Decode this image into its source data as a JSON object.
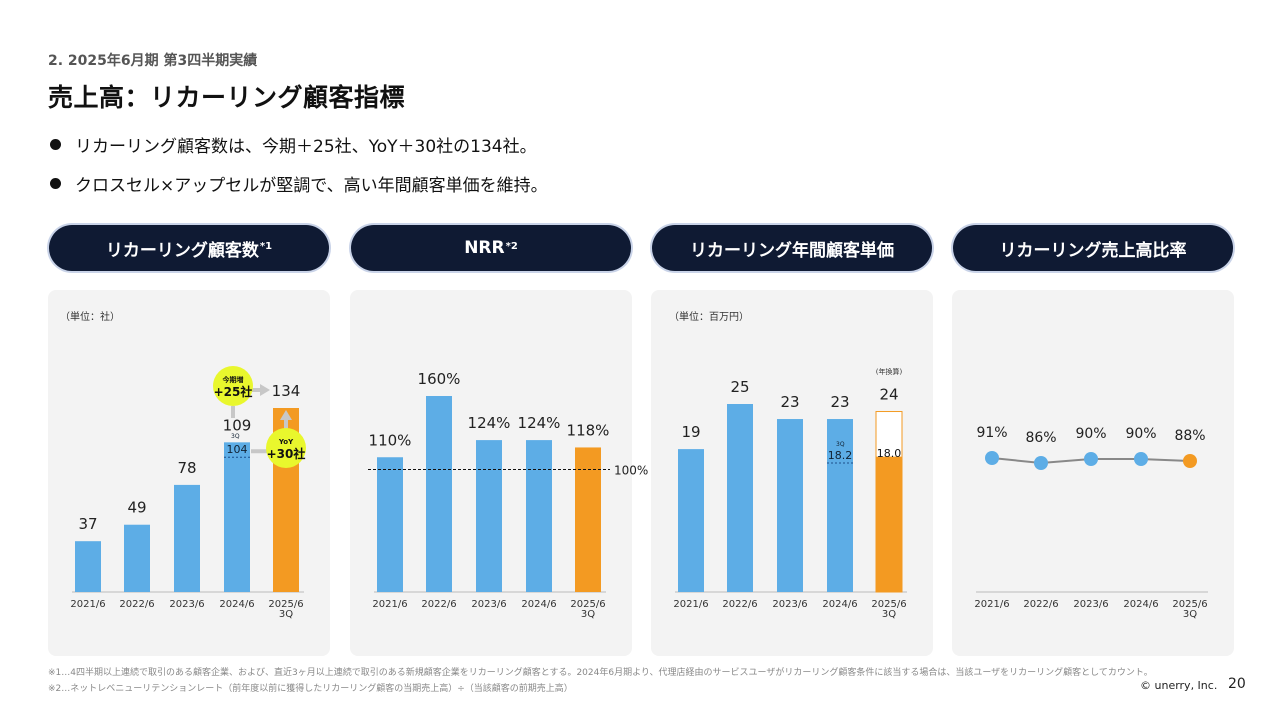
{
  "breadcrumb": "2. 2025年6月期 第3四半期実績",
  "title": "売上高：リカーリング顧客指標",
  "bullets": [
    "リカーリング顧客数は、今期＋25社、YoY＋30社の134社。",
    "クロスセル×アップセルが堅調で、高い年間顧客単価を維持。"
  ],
  "headers": {
    "customers": "リカーリング顧客数",
    "customers_mark": "*1",
    "nrr": "NRR",
    "nrr_mark": "*2",
    "unit_price": "リカーリング年間顧客単価",
    "ratio": "リカーリング売上高比率"
  },
  "colors": {
    "blue": "#5dade6",
    "orange": "#f39a22",
    "navy": "#0f1a33",
    "badge": "#e9f72d",
    "gray": "#c7c7c7"
  },
  "chart_data": [
    {
      "id": "customers",
      "type": "bar",
      "unit": "（単位：社）",
      "categories": [
        "2021/6",
        "2022/6",
        "2023/6",
        "2024/6",
        "2025/6\n3Q"
      ],
      "values": [
        37,
        49,
        78,
        109,
        134
      ],
      "labels": [
        "37",
        "49",
        "78",
        "109",
        "134"
      ],
      "ylim": [
        0,
        134
      ],
      "highlight_index": 4,
      "inner_marker": {
        "index": 3,
        "tag": "3Q",
        "value": 104
      },
      "badges": [
        {
          "small": "今期増",
          "big": "+25社"
        },
        {
          "small": "YoY",
          "big": "+30社"
        }
      ]
    },
    {
      "id": "nrr",
      "type": "bar",
      "categories": [
        "2021/6",
        "2022/6",
        "2023/6",
        "2024/6",
        "2025/6\n3Q"
      ],
      "values": [
        110,
        160,
        124,
        124,
        118
      ],
      "labels": [
        "110%",
        "160%",
        "124%",
        "124%",
        "118%"
      ],
      "ylim": [
        0,
        160
      ],
      "highlight_index": 4,
      "reference_line": {
        "value": 100,
        "label": "100%"
      }
    },
    {
      "id": "unit_price",
      "type": "bar",
      "unit": "（単位：百万円）",
      "categories": [
        "2021/6",
        "2022/6",
        "2023/6",
        "2024/6",
        "2025/6\n3Q"
      ],
      "values": [
        19,
        25,
        23,
        23,
        24
      ],
      "labels": [
        "19",
        "25",
        "23",
        "23",
        "24"
      ],
      "ylim": [
        0,
        25
      ],
      "highlight_index": 4,
      "annualized_note": "(年換算)",
      "inner_markers": [
        {
          "index": 3,
          "tag": "3Q",
          "value": 18.2
        },
        {
          "index": 4,
          "value": 18.0
        }
      ]
    },
    {
      "id": "ratio",
      "type": "line",
      "categories": [
        "2021/6",
        "2022/6",
        "2023/6",
        "2024/6",
        "2025/6\n3Q"
      ],
      "values": [
        91,
        86,
        90,
        90,
        88
      ],
      "labels": [
        "91%",
        "86%",
        "90%",
        "90%",
        "88%"
      ],
      "highlight_index": 4
    }
  ],
  "footnotes": [
    "※1…4四半期以上連続で取引のある顧客企業、および、直近3ヶ月以上連続で取引のある新規顧客企業をリカーリング顧客とする。2024年6月期より、代理店経由のサービスユーザがリカーリング顧客条件に該当する場合は、当該ユーザをリカーリング顧客としてカウント。",
    "※2…ネットレベニューリテンションレート（前年度以前に獲得したリカーリング顧客の当期売上高）÷（当該顧客の前期売上高）"
  ],
  "copyright": "© unerry, Inc.",
  "page_number": "20"
}
